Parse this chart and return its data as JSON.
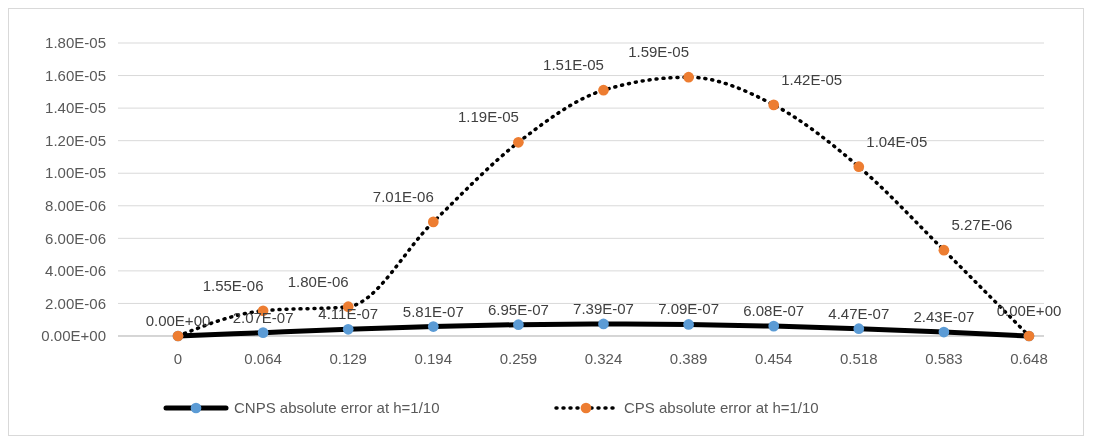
{
  "chart_data": {
    "type": "line",
    "categories": [
      "0",
      "0.064",
      "0.129",
      "0.194",
      "0.259",
      "0.324",
      "0.389",
      "0.454",
      "0.518",
      "0.583",
      "0.648"
    ],
    "series": [
      {
        "name": "CNPS absolute error at h=1/10",
        "color": "#5b9bd5",
        "line_style": "solid",
        "values": [
          0,
          2.07e-07,
          4.11e-07,
          5.81e-07,
          6.95e-07,
          7.39e-07,
          7.09e-07,
          6.08e-07,
          4.47e-07,
          2.43e-07,
          0
        ],
        "value_labels": [
          "0.00E+00",
          "2.07E-07",
          "4.11E-07",
          "5.81E-07",
          "6.95E-07",
          "7.39E-07",
          "7.09E-07",
          "6.08E-07",
          "4.47E-07",
          "2.43E-07",
          null
        ]
      },
      {
        "name": "CPS absolute error at h=1/10",
        "color": "#ed7d31",
        "line_style": "dotted",
        "values": [
          0,
          1.55e-06,
          1.8e-06,
          7.01e-06,
          1.19e-05,
          1.51e-05,
          1.59e-05,
          1.42e-05,
          1.04e-05,
          5.27e-06,
          0
        ],
        "value_labels": [
          null,
          "1.55E-06",
          "1.80E-06",
          "7.01E-06",
          "1.19E-05",
          "1.51E-05",
          "1.59E-05",
          "1.42E-05",
          "1.04E-05",
          "5.27E-06",
          "0.00E+00"
        ]
      }
    ],
    "ylim": [
      0,
      1.8e-05
    ],
    "yticks": [
      {
        "value": 0,
        "label": "0.00E+00"
      },
      {
        "value": 2e-06,
        "label": "2.00E-06"
      },
      {
        "value": 4e-06,
        "label": "4.00E-06"
      },
      {
        "value": 6e-06,
        "label": "6.00E-06"
      },
      {
        "value": 8e-06,
        "label": "8.00E-06"
      },
      {
        "value": 1e-05,
        "label": "1.00E-05"
      },
      {
        "value": 1.2e-05,
        "label": "1.20E-05"
      },
      {
        "value": 1.4e-05,
        "label": "1.40E-05"
      },
      {
        "value": 1.6e-05,
        "label": "1.60E-05"
      },
      {
        "value": 1.8e-05,
        "label": "1.80E-05"
      }
    ],
    "grid": "y",
    "legend": "bottom",
    "marker": "circle"
  }
}
